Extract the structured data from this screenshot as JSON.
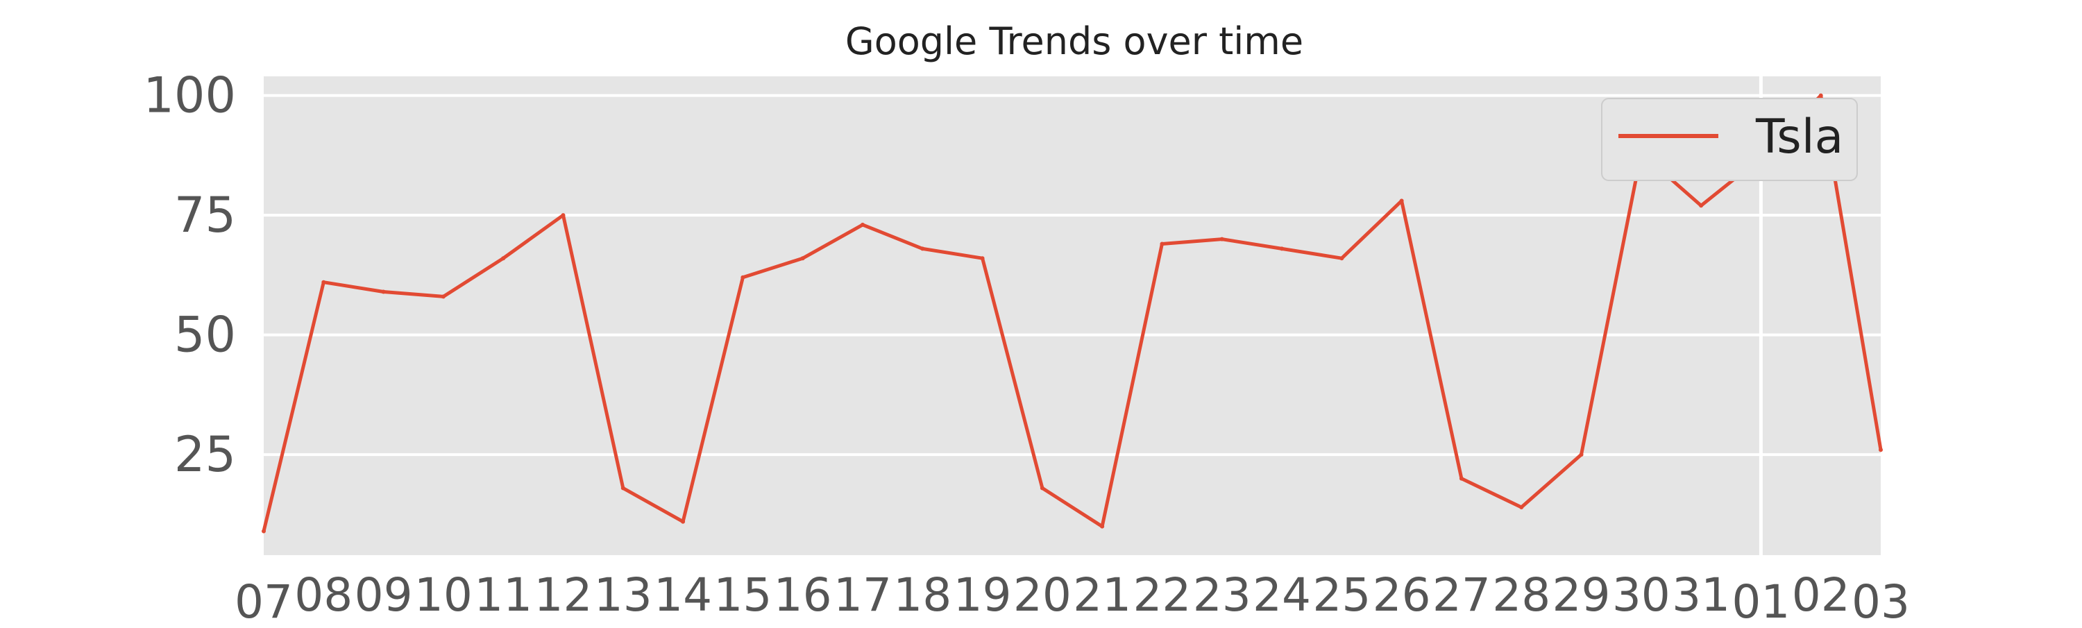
{
  "chart_data": {
    "type": "line",
    "title": "Google Trends over time",
    "xlabel": "",
    "ylabel": "",
    "x": [
      "07",
      "08",
      "09",
      "10",
      "11",
      "12",
      "13",
      "14",
      "15",
      "16",
      "17",
      "18",
      "19",
      "20",
      "21",
      "22",
      "23",
      "24",
      "25",
      "26",
      "27",
      "28",
      "29",
      "30",
      "31",
      "01",
      "02",
      "03"
    ],
    "series": [
      {
        "name": "Tsla",
        "values": [
          9,
          61,
          59,
          58,
          66,
          75,
          18,
          11,
          62,
          66,
          73,
          68,
          66,
          18,
          10,
          69,
          70,
          68,
          66,
          78,
          20,
          14,
          25,
          88,
          77,
          87,
          100,
          26
        ]
      }
    ],
    "ylim": [
      4,
      104
    ],
    "yticks": [
      25,
      50,
      75,
      100
    ],
    "grid": true,
    "legend": "upper right",
    "background_color": "#e5e5e5",
    "line_color": "#e24a33",
    "grid_color": "#ffffff"
  }
}
